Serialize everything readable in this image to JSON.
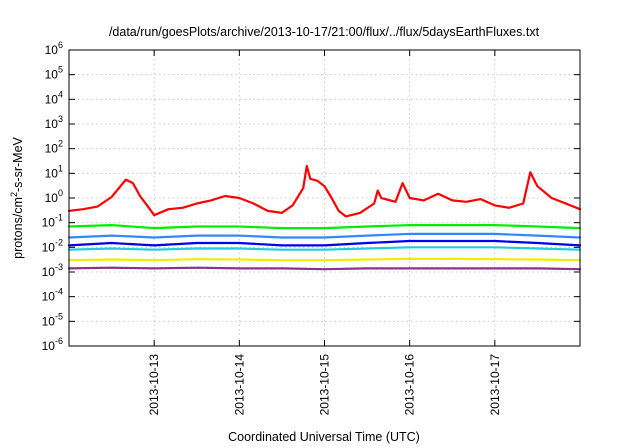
{
  "chart_data": {
    "type": "line",
    "title": "/data/run/goesPlots/archive/2013-10-17/21:00/flux/../flux/5daysEarthFluxes.txt",
    "xlabel": "Coordinated Universal Time (UTC)",
    "ylabel": "protons/cm²-s-sr-MeV",
    "y_scale": "log",
    "ylim": [
      1e-06,
      1000000.0
    ],
    "y_ticks": [
      {
        "value": 1e-06,
        "base": "10",
        "exp": "-6"
      },
      {
        "value": 1e-05,
        "base": "10",
        "exp": "-5"
      },
      {
        "value": 0.0001,
        "base": "10",
        "exp": "-4"
      },
      {
        "value": 0.001,
        "base": "10",
        "exp": "-3"
      },
      {
        "value": 0.01,
        "base": "10",
        "exp": "-2"
      },
      {
        "value": 0.1,
        "base": "10",
        "exp": "-1"
      },
      {
        "value": 1,
        "base": "10",
        "exp": "0"
      },
      {
        "value": 10,
        "base": "10",
        "exp": "1"
      },
      {
        "value": 100,
        "base": "10",
        "exp": "2"
      },
      {
        "value": 1000,
        "base": "10",
        "exp": "3"
      },
      {
        "value": 10000,
        "base": "10",
        "exp": "4"
      },
      {
        "value": 100000,
        "base": "10",
        "exp": "5"
      },
      {
        "value": 1000000,
        "base": "10",
        "exp": "6"
      }
    ],
    "xlim": [
      "2013-10-12T00:00",
      "2013-10-18T00:00"
    ],
    "x_ticks": [
      "2013-10-13",
      "2013-10-14",
      "2013-10-15",
      "2013-10-16",
      "2013-10-17"
    ],
    "grid": true,
    "series": [
      {
        "color": "#ff0000",
        "points": [
          [
            "2013-10-12T00:00",
            0.3
          ],
          [
            "2013-10-12T04:00",
            0.35
          ],
          [
            "2013-10-12T08:00",
            0.45
          ],
          [
            "2013-10-12T12:00",
            1.1
          ],
          [
            "2013-10-12T16:00",
            5.5
          ],
          [
            "2013-10-12T18:00",
            4.0
          ],
          [
            "2013-10-12T20:00",
            1.2
          ],
          [
            "2013-10-12T22:00",
            0.5
          ],
          [
            "2013-10-13T00:00",
            0.2
          ],
          [
            "2013-10-13T04:00",
            0.35
          ],
          [
            "2013-10-13T08:00",
            0.4
          ],
          [
            "2013-10-13T12:00",
            0.6
          ],
          [
            "2013-10-13T16:00",
            0.8
          ],
          [
            "2013-10-13T20:00",
            1.2
          ],
          [
            "2013-10-14T00:00",
            1.0
          ],
          [
            "2013-10-14T04:00",
            0.6
          ],
          [
            "2013-10-14T08:00",
            0.3
          ],
          [
            "2013-10-14T12:00",
            0.25
          ],
          [
            "2013-10-14T15:00",
            0.5
          ],
          [
            "2013-10-14T18:00",
            2.5
          ],
          [
            "2013-10-14T19:00",
            20.0
          ],
          [
            "2013-10-14T20:00",
            6.0
          ],
          [
            "2013-10-14T22:00",
            5.0
          ],
          [
            "2013-10-15T00:00",
            3.0
          ],
          [
            "2013-10-15T02:00",
            1.0
          ],
          [
            "2013-10-15T04:00",
            0.3
          ],
          [
            "2013-10-15T06:00",
            0.18
          ],
          [
            "2013-10-15T10:00",
            0.25
          ],
          [
            "2013-10-15T14:00",
            0.6
          ],
          [
            "2013-10-15T15:00",
            2.0
          ],
          [
            "2013-10-15T16:00",
            1.0
          ],
          [
            "2013-10-15T20:00",
            0.7
          ],
          [
            "2013-10-15T22:00",
            4.0
          ],
          [
            "2013-10-16T00:00",
            1.0
          ],
          [
            "2013-10-16T04:00",
            0.8
          ],
          [
            "2013-10-16T08:00",
            1.5
          ],
          [
            "2013-10-16T12:00",
            0.8
          ],
          [
            "2013-10-16T16:00",
            0.7
          ],
          [
            "2013-10-16T20:00",
            0.9
          ],
          [
            "2013-10-17T00:00",
            0.5
          ],
          [
            "2013-10-17T04:00",
            0.4
          ],
          [
            "2013-10-17T08:00",
            0.6
          ],
          [
            "2013-10-17T10:00",
            11.0
          ],
          [
            "2013-10-17T12:00",
            3.0
          ],
          [
            "2013-10-17T16:00",
            1.0
          ],
          [
            "2013-10-17T20:00",
            0.6
          ],
          [
            "2013-10-18T00:00",
            0.35
          ]
        ]
      },
      {
        "color": "#00ee00",
        "points": [
          [
            "2013-10-12T00:00",
            0.07
          ],
          [
            "2013-10-12T12:00",
            0.08
          ],
          [
            "2013-10-13T00:00",
            0.06
          ],
          [
            "2013-10-13T12:00",
            0.07
          ],
          [
            "2013-10-14T00:00",
            0.07
          ],
          [
            "2013-10-14T12:00",
            0.06
          ],
          [
            "2013-10-15T00:00",
            0.06
          ],
          [
            "2013-10-15T12:00",
            0.07
          ],
          [
            "2013-10-16T00:00",
            0.08
          ],
          [
            "2013-10-16T12:00",
            0.08
          ],
          [
            "2013-10-17T00:00",
            0.08
          ],
          [
            "2013-10-17T12:00",
            0.07
          ],
          [
            "2013-10-18T00:00",
            0.06
          ]
        ]
      },
      {
        "color": "#3388ff",
        "points": [
          [
            "2013-10-12T00:00",
            0.025
          ],
          [
            "2013-10-12T12:00",
            0.03
          ],
          [
            "2013-10-13T00:00",
            0.025
          ],
          [
            "2013-10-13T12:00",
            0.03
          ],
          [
            "2013-10-14T00:00",
            0.03
          ],
          [
            "2013-10-14T12:00",
            0.025
          ],
          [
            "2013-10-15T00:00",
            0.025
          ],
          [
            "2013-10-15T12:00",
            0.03
          ],
          [
            "2013-10-16T00:00",
            0.035
          ],
          [
            "2013-10-16T12:00",
            0.035
          ],
          [
            "2013-10-17T00:00",
            0.035
          ],
          [
            "2013-10-17T12:00",
            0.03
          ],
          [
            "2013-10-18T00:00",
            0.025
          ]
        ]
      },
      {
        "color": "#0000ee",
        "points": [
          [
            "2013-10-12T00:00",
            0.012
          ],
          [
            "2013-10-12T12:00",
            0.015
          ],
          [
            "2013-10-13T00:00",
            0.012
          ],
          [
            "2013-10-13T12:00",
            0.015
          ],
          [
            "2013-10-14T00:00",
            0.015
          ],
          [
            "2013-10-14T12:00",
            0.012
          ],
          [
            "2013-10-15T00:00",
            0.012
          ],
          [
            "2013-10-15T12:00",
            0.015
          ],
          [
            "2013-10-16T00:00",
            0.018
          ],
          [
            "2013-10-16T12:00",
            0.018
          ],
          [
            "2013-10-17T00:00",
            0.018
          ],
          [
            "2013-10-17T12:00",
            0.015
          ],
          [
            "2013-10-18T00:00",
            0.012
          ]
        ]
      },
      {
        "color": "#22ccdd",
        "points": [
          [
            "2013-10-12T00:00",
            0.008
          ],
          [
            "2013-10-12T12:00",
            0.009
          ],
          [
            "2013-10-13T00:00",
            0.008
          ],
          [
            "2013-10-13T12:00",
            0.009
          ],
          [
            "2013-10-14T00:00",
            0.009
          ],
          [
            "2013-10-14T12:00",
            0.008
          ],
          [
            "2013-10-15T00:00",
            0.008
          ],
          [
            "2013-10-15T12:00",
            0.009
          ],
          [
            "2013-10-16T00:00",
            0.01
          ],
          [
            "2013-10-16T12:00",
            0.01
          ],
          [
            "2013-10-17T00:00",
            0.01
          ],
          [
            "2013-10-17T12:00",
            0.009
          ],
          [
            "2013-10-18T00:00",
            0.008
          ]
        ]
      },
      {
        "color": "#eeee00",
        "points": [
          [
            "2013-10-12T00:00",
            0.003
          ],
          [
            "2013-10-12T12:00",
            0.0032
          ],
          [
            "2013-10-13T00:00",
            0.003
          ],
          [
            "2013-10-13T12:00",
            0.0033
          ],
          [
            "2013-10-14T00:00",
            0.0032
          ],
          [
            "2013-10-14T12:00",
            0.003
          ],
          [
            "2013-10-15T00:00",
            0.003
          ],
          [
            "2013-10-15T12:00",
            0.0032
          ],
          [
            "2013-10-16T00:00",
            0.0034
          ],
          [
            "2013-10-16T12:00",
            0.0034
          ],
          [
            "2013-10-17T00:00",
            0.0033
          ],
          [
            "2013-10-17T12:00",
            0.0032
          ],
          [
            "2013-10-18T00:00",
            0.003
          ]
        ]
      },
      {
        "color": "#883388",
        "points": [
          [
            "2013-10-12T00:00",
            0.0014
          ],
          [
            "2013-10-12T12:00",
            0.0015
          ],
          [
            "2013-10-13T00:00",
            0.0014
          ],
          [
            "2013-10-13T12:00",
            0.0015
          ],
          [
            "2013-10-14T00:00",
            0.0014
          ],
          [
            "2013-10-14T12:00",
            0.0014
          ],
          [
            "2013-10-15T00:00",
            0.0013
          ],
          [
            "2013-10-15T12:00",
            0.0014
          ],
          [
            "2013-10-16T00:00",
            0.0014
          ],
          [
            "2013-10-16T12:00",
            0.0014
          ],
          [
            "2013-10-17T00:00",
            0.0014
          ],
          [
            "2013-10-17T12:00",
            0.0014
          ],
          [
            "2013-10-18T00:00",
            0.0013
          ]
        ]
      }
    ]
  }
}
